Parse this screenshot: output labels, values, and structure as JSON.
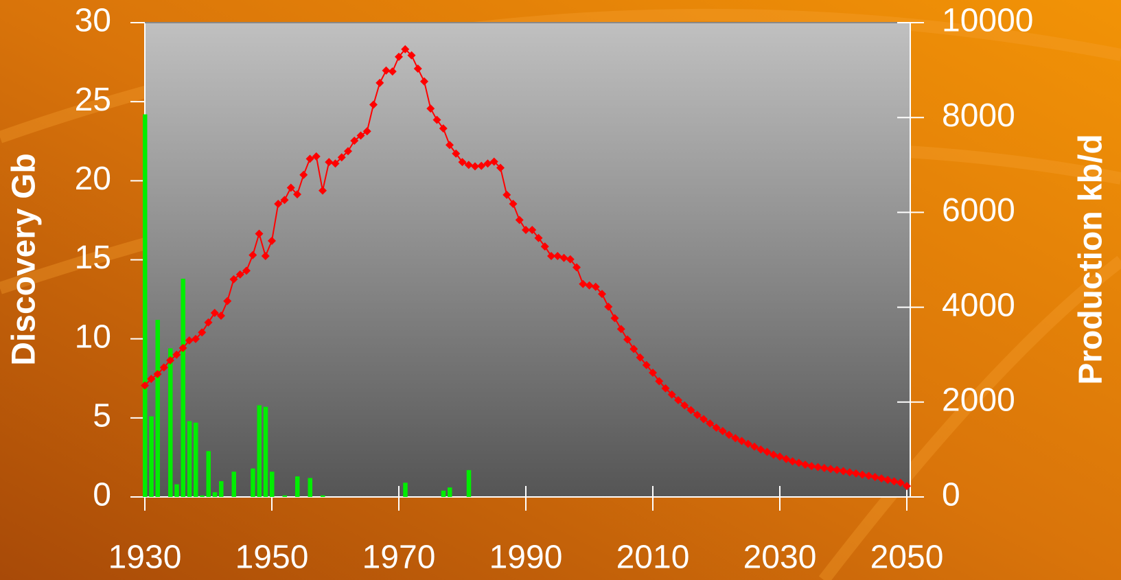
{
  "chart_data": {
    "type": "combo",
    "xlim": [
      1930,
      2050
    ],
    "xticks": [
      1930,
      1950,
      1970,
      1990,
      2010,
      2030,
      2050
    ],
    "ylim": [
      0,
      30
    ],
    "yticks": [
      0,
      5,
      10,
      15,
      20,
      25,
      30
    ],
    "ylabel": "Discovery Gb",
    "y2lim": [
      0,
      10000
    ],
    "y2ticks": [
      0,
      2000,
      4000,
      6000,
      8000,
      10000
    ],
    "y2label": "Production kb/d",
    "series": [
      {
        "type": "bar",
        "color": "#00ee00",
        "x": [
          1930,
          1931,
          1932,
          1934,
          1935,
          1936,
          1937,
          1938,
          1939,
          1940,
          1941,
          1942,
          1944,
          1947,
          1948,
          1949,
          1950,
          1952,
          1954,
          1956,
          1958,
          1971,
          1977,
          1978,
          1981
        ],
        "values": [
          24.2,
          5.1,
          11.2,
          9.4,
          0.8,
          13.8,
          4.8,
          4.7,
          0.1,
          2.9,
          0.3,
          1.0,
          1.6,
          1.8,
          5.8,
          5.7,
          1.6,
          0.1,
          1.3,
          1.2,
          0.1,
          0.9,
          0.4,
          0.6,
          1.7
        ]
      },
      {
        "type": "line",
        "axis": "y2",
        "color": "#ff0000",
        "x": [
          1930,
          1931,
          1932,
          1933,
          1934,
          1935,
          1936,
          1937,
          1938,
          1939,
          1940,
          1941,
          1942,
          1943,
          1944,
          1945,
          1946,
          1947,
          1948,
          1949,
          1950,
          1951,
          1952,
          1953,
          1954,
          1955,
          1956,
          1957,
          1958,
          1959,
          1960,
          1961,
          1962,
          1963,
          1964,
          1965,
          1966,
          1967,
          1968,
          1969,
          1970,
          1971,
          1972,
          1973,
          1974,
          1975,
          1976,
          1977,
          1978,
          1979,
          1980,
          1981,
          1982,
          1983,
          1984,
          1985,
          1986,
          1987,
          1988,
          1989,
          1990,
          1991,
          1992,
          1993,
          1994,
          1995,
          1996,
          1997,
          1998,
          1999,
          2000,
          2001,
          2002,
          2003,
          2004,
          2005,
          2006,
          2007,
          2008,
          2009,
          2010,
          2011,
          2012,
          2013,
          2014,
          2015,
          2016,
          2017,
          2018,
          2019,
          2020,
          2021,
          2022,
          2023,
          2024,
          2025,
          2026,
          2027,
          2028,
          2029,
          2030,
          2031,
          2032,
          2033,
          2034,
          2035,
          2036,
          2037,
          2038,
          2039,
          2040,
          2041,
          2042,
          2043,
          2044,
          2045,
          2046,
          2047,
          2048,
          2049,
          2050
        ],
        "values": [
          2350,
          2490,
          2590,
          2730,
          2880,
          3000,
          3140,
          3300,
          3330,
          3470,
          3680,
          3880,
          3820,
          4130,
          4590,
          4690,
          4770,
          5100,
          5550,
          5080,
          5400,
          6180,
          6260,
          6520,
          6380,
          6790,
          7130,
          7180,
          6460,
          7060,
          7030,
          7160,
          7290,
          7510,
          7620,
          7710,
          8270,
          8730,
          8990,
          8970,
          9280,
          9440,
          9310,
          9030,
          8760,
          8190,
          7950,
          7770,
          7420,
          7240,
          7060,
          7000,
          6970,
          6980,
          7030,
          7070,
          6940,
          6370,
          6180,
          5840,
          5630,
          5630,
          5460,
          5280,
          5080,
          5080,
          5040,
          5010,
          4840,
          4490,
          4460,
          4430,
          4280,
          4010,
          3770,
          3540,
          3320,
          3120,
          2940,
          2780,
          2620,
          2440,
          2290,
          2160,
          2040,
          1930,
          1830,
          1730,
          1640,
          1550,
          1460,
          1390,
          1310,
          1240,
          1180,
          1120,
          1060,
          1000,
          950,
          890,
          850,
          800,
          750,
          720,
          680,
          650,
          630,
          610,
          590,
          570,
          545,
          520,
          495,
          470,
          445,
          420,
          390,
          360,
          330,
          300,
          230
        ]
      }
    ]
  }
}
